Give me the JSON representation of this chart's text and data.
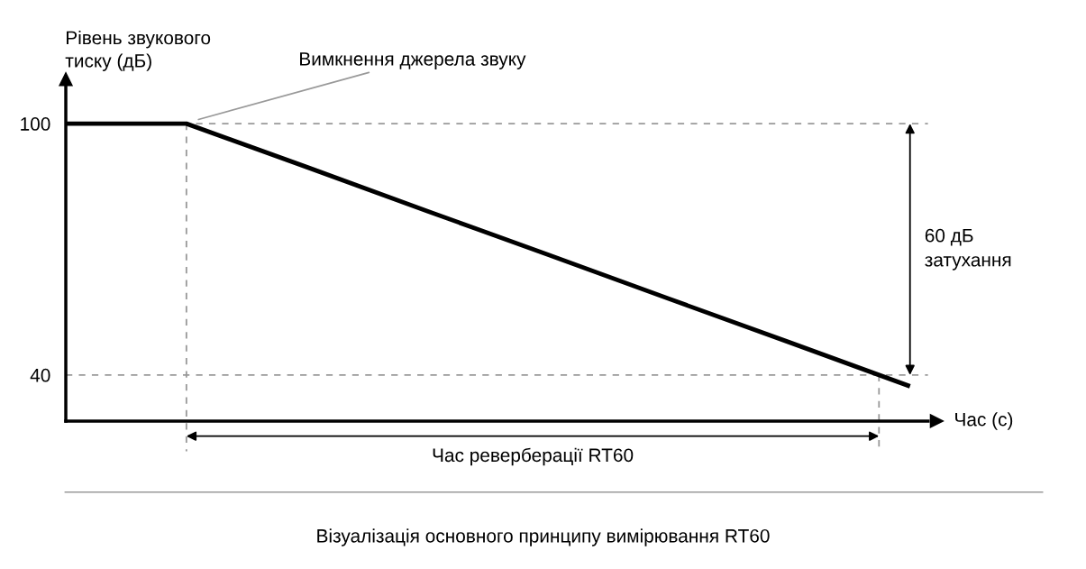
{
  "chart_data": {
    "type": "line",
    "ylabel": "Рівень звукового\nтиску (дБ)",
    "xlabel": "Час (с)",
    "categories": [
      null,
      null,
      null,
      null,
      null,
      null,
      null,
      null
    ],
    "series": [
      {
        "color": "#000000",
        "values": [
          100,
          100,
          89.6,
          79.1,
          68.7,
          58.2,
          47.8,
          37.3
        ]
      }
    ],
    "ylim": [
      29,
      109
    ],
    "yticks": [
      100,
      40
    ],
    "tick_labels": "y",
    "grid": false,
    "line_style": "solid",
    "ref_lines": [
      {
        "axis": "y",
        "value": 100,
        "color": "#999999",
        "line_style": "dashed"
      },
      {
        "axis": "y",
        "value": 40,
        "color": "#999999",
        "line_style": "dashed"
      }
    ],
    "annotations": [
      "Вимкнення джерела звуку",
      "60 дБ\nзатухання",
      "Час реверберації RT60",
      "Візуалізація основного принципу вимірювання RT60"
    ]
  }
}
